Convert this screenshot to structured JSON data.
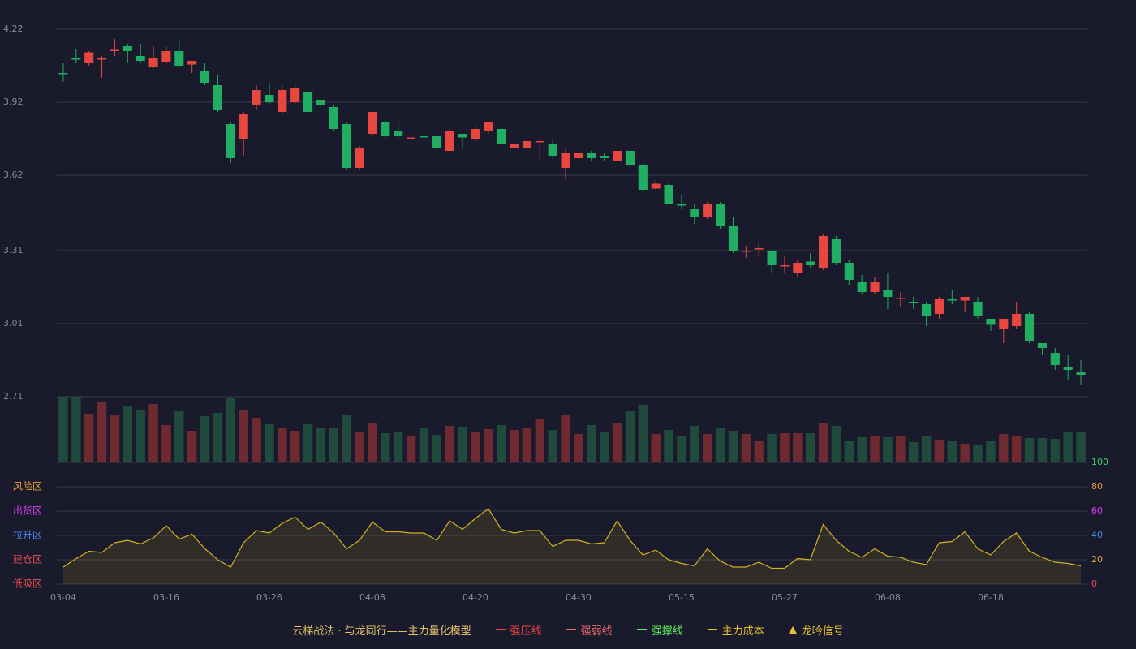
{
  "chart_data": [
    {
      "type": "candlestick",
      "up_color": "#e8473f",
      "down_color": "#1fae62",
      "grid": true,
      "categories": [
        "03-04",
        null,
        null,
        null,
        null,
        null,
        null,
        null,
        "03-16",
        null,
        null,
        null,
        null,
        null,
        null,
        null,
        "03-26",
        null,
        null,
        null,
        null,
        null,
        null,
        null,
        "04-08",
        null,
        null,
        null,
        null,
        null,
        null,
        null,
        "04-20",
        null,
        null,
        null,
        null,
        null,
        null,
        null,
        "04-30",
        null,
        null,
        null,
        null,
        null,
        null,
        null,
        "05-15",
        null,
        null,
        null,
        null,
        null,
        null,
        null,
        "05-27",
        null,
        null,
        null,
        null,
        null,
        null,
        null,
        "06-08",
        null,
        null,
        null,
        null,
        null,
        null,
        null,
        "06-18",
        null,
        null,
        null,
        null,
        null,
        null,
        null
      ],
      "open": [
        4.04,
        4.1,
        4.08,
        4.095,
        4.13,
        4.15,
        4.11,
        4.065,
        4.085,
        4.13,
        4.075,
        4.05,
        3.99,
        3.83,
        3.77,
        3.91,
        3.95,
        3.88,
        3.92,
        3.96,
        3.93,
        3.9,
        3.83,
        3.65,
        3.79,
        3.84,
        3.8,
        3.77,
        3.78,
        3.78,
        3.72,
        3.79,
        3.77,
        3.8,
        3.81,
        3.73,
        3.73,
        3.755,
        3.75,
        3.65,
        3.69,
        3.71,
        3.7,
        3.68,
        3.72,
        3.66,
        3.565,
        3.58,
        3.5,
        3.48,
        3.45,
        3.5,
        3.41,
        3.305,
        3.315,
        3.31,
        3.245,
        3.22,
        3.265,
        3.24,
        3.36,
        3.26,
        3.18,
        3.14,
        3.15,
        3.11,
        3.1,
        3.09,
        3.05,
        3.11,
        3.105,
        3.1,
        3.03,
        2.99,
        3.0,
        3.05,
        2.93,
        2.89,
        2.83,
        2.81
      ],
      "high": [
        4.08,
        4.14,
        4.13,
        4.11,
        4.18,
        4.16,
        4.16,
        4.15,
        4.15,
        4.18,
        4.09,
        4.08,
        4.03,
        3.84,
        3.88,
        3.99,
        4.0,
        3.99,
        4.0,
        4.0,
        3.94,
        3.91,
        3.84,
        3.74,
        3.88,
        3.85,
        3.84,
        3.8,
        3.81,
        3.79,
        3.81,
        3.79,
        3.82,
        3.84,
        3.82,
        3.76,
        3.77,
        3.77,
        3.77,
        3.73,
        3.71,
        3.72,
        3.71,
        3.73,
        3.72,
        3.67,
        3.6,
        3.59,
        3.54,
        3.5,
        3.51,
        3.51,
        3.45,
        3.33,
        3.34,
        3.31,
        3.29,
        3.27,
        3.3,
        3.38,
        3.37,
        3.27,
        3.21,
        3.2,
        3.22,
        3.14,
        3.12,
        3.1,
        3.12,
        3.15,
        3.12,
        3.12,
        3.03,
        3.03,
        3.1,
        3.06,
        2.93,
        2.91,
        2.88,
        2.86
      ],
      "low": [
        4.005,
        4.08,
        4.07,
        4.02,
        4.11,
        4.08,
        4.08,
        4.06,
        4.08,
        4.06,
        4.04,
        3.99,
        3.88,
        3.67,
        3.7,
        3.89,
        3.91,
        3.87,
        3.91,
        3.87,
        3.88,
        3.8,
        3.64,
        3.64,
        3.78,
        3.77,
        3.77,
        3.75,
        3.74,
        3.72,
        3.72,
        3.73,
        3.76,
        3.79,
        3.74,
        3.73,
        3.7,
        3.68,
        3.69,
        3.6,
        3.69,
        3.68,
        3.68,
        3.67,
        3.65,
        3.55,
        3.56,
        3.5,
        3.48,
        3.42,
        3.44,
        3.4,
        3.3,
        3.28,
        3.29,
        3.22,
        3.22,
        3.2,
        3.24,
        3.23,
        3.25,
        3.17,
        3.13,
        3.13,
        3.07,
        3.08,
        3.07,
        3.0,
        3.03,
        3.09,
        3.06,
        3.03,
        2.98,
        2.93,
        2.99,
        2.93,
        2.88,
        2.82,
        2.78,
        2.76
      ],
      "close": [
        4.035,
        4.095,
        4.125,
        4.1,
        4.135,
        4.13,
        4.09,
        4.1,
        4.13,
        4.07,
        4.09,
        4.0,
        3.89,
        3.69,
        3.87,
        3.97,
        3.92,
        3.97,
        3.98,
        3.88,
        3.91,
        3.81,
        3.65,
        3.73,
        3.88,
        3.78,
        3.78,
        3.775,
        3.775,
        3.73,
        3.8,
        3.775,
        3.81,
        3.84,
        3.75,
        3.75,
        3.76,
        3.76,
        3.7,
        3.71,
        3.71,
        3.69,
        3.69,
        3.72,
        3.66,
        3.56,
        3.585,
        3.5,
        3.495,
        3.45,
        3.5,
        3.41,
        3.31,
        3.31,
        3.32,
        3.25,
        3.25,
        3.26,
        3.25,
        3.37,
        3.26,
        3.19,
        3.14,
        3.18,
        3.12,
        3.115,
        3.095,
        3.04,
        3.11,
        3.105,
        3.12,
        3.04,
        3.005,
        3.03,
        3.05,
        2.94,
        2.91,
        2.84,
        2.82,
        2.8
      ],
      "ylim": [
        2.71,
        4.22
      ],
      "yticks": [
        4.22,
        3.92,
        3.62,
        3.31,
        3.01,
        2.71
      ]
    },
    {
      "type": "bar",
      "up_color": "#6e2a30",
      "down_color": "#1f4a3c",
      "values": [
        81,
        81,
        60,
        74,
        59,
        70,
        65,
        72,
        46,
        63,
        39,
        57,
        61,
        80,
        65,
        55,
        47,
        42,
        39,
        47,
        43,
        43,
        58,
        37,
        48,
        36,
        38,
        33,
        42,
        34,
        45,
        44,
        37,
        41,
        46,
        40,
        42,
        53,
        40,
        59,
        35,
        46,
        38,
        48,
        63,
        71,
        35,
        40,
        33,
        45,
        35,
        42,
        39,
        35,
        26,
        35,
        36,
        36,
        36,
        48,
        45,
        27,
        31,
        33,
        31,
        32,
        25,
        33,
        28,
        27,
        23,
        21,
        27,
        35,
        32,
        30,
        30,
        29,
        38,
        37
      ]
    },
    {
      "type": "area",
      "color": "#d4b21e",
      "grid": true,
      "values": [
        14,
        21,
        27,
        26,
        34,
        36,
        33,
        38,
        48,
        37,
        41,
        29,
        20,
        14,
        34,
        44,
        42,
        50,
        55,
        45,
        51,
        42,
        29,
        36,
        51,
        43,
        43,
        42,
        42,
        36,
        52,
        45,
        54,
        62,
        45,
        42,
        44,
        44,
        31,
        36,
        36,
        33,
        34,
        52,
        36,
        24,
        28,
        20,
        17,
        15,
        29,
        19,
        14,
        14,
        18,
        13,
        13,
        21,
        20,
        49,
        36,
        27,
        22,
        29,
        23,
        22,
        18,
        16,
        34,
        35,
        43,
        29,
        24,
        35,
        42,
        27,
        22,
        18,
        17,
        15
      ],
      "ylim": [
        0,
        100
      ],
      "yticks": [
        {
          "value": 100,
          "label": "100",
          "color": "#3fd46a"
        },
        {
          "value": 80,
          "label": "80",
          "color": "#e8a33c"
        },
        {
          "value": 60,
          "label": "60",
          "color": "#e040fb"
        },
        {
          "value": 40,
          "label": "40",
          "color": "#4d8df5"
        },
        {
          "value": 20,
          "label": "20",
          "color": "#e8a33c"
        },
        {
          "value": 0,
          "label": "0",
          "color": "#f05050"
        }
      ],
      "zones": [
        {
          "value": 80,
          "label": "风险区",
          "color": "#e8a33c"
        },
        {
          "value": 60,
          "label": "出货区",
          "color": "#e040fb"
        },
        {
          "value": 40,
          "label": "拉升区",
          "color": "#4d8df5"
        },
        {
          "value": 20,
          "label": "建仓区",
          "color": "#f05050"
        },
        {
          "value": 0,
          "label": "低吸区",
          "color": "#f05050"
        }
      ]
    }
  ],
  "legend": {
    "title": "云梯战法 · 与龙同行——主力量化模型",
    "title_color": "#e8c36a",
    "items": [
      {
        "name": "强压线",
        "color": "#f0453c",
        "style": "solid"
      },
      {
        "name": "强弱线",
        "color": "#f06a6a",
        "style": "dashed"
      },
      {
        "name": "强撑线",
        "color": "#5ef05e",
        "style": "solid"
      },
      {
        "name": "主力成本",
        "color": "#e6c22e",
        "style": "dashed"
      },
      {
        "name": "龙吟信号",
        "color": "#e6c22e",
        "style": "triangle"
      }
    ]
  }
}
